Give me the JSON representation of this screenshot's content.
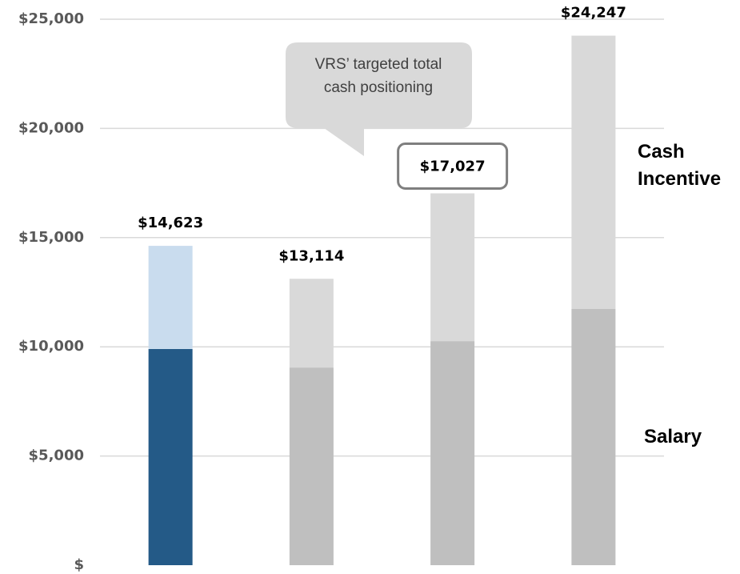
{
  "chart_data": {
    "type": "stacked_bar",
    "categories": [
      null,
      null,
      null,
      null
    ],
    "series": [
      {
        "name": "Salary",
        "color": "#bfbfbf",
        "colors": [
          "#245a87",
          "#bfbfbf",
          "#bfbfbf",
          "#bfbfbf"
        ],
        "values": [
          9900,
          9050,
          10260,
          11730
        ]
      },
      {
        "name": "Cash Incentive",
        "color": "#d9d9d9",
        "colors": [
          "#c9dcee",
          "#d9d9d9",
          "#d9d9d9",
          "#d9d9d9"
        ],
        "values": [
          4723,
          4064,
          6767,
          12517
        ]
      }
    ],
    "totals": [
      14623,
      13114,
      17027,
      24247
    ],
    "total_labels": [
      "$14,623",
      "$13,114",
      "$17,027",
      "$24,247"
    ],
    "annotation": "VRS’ targeted total cash positioning",
    "ylim": [
      0,
      25000
    ],
    "yticks": [
      {
        "value": 0,
        "label": "$"
      },
      {
        "value": 5000,
        "label": "$5,000"
      },
      {
        "value": 10000,
        "label": "$10,000"
      },
      {
        "value": 15000,
        "label": "$15,000"
      },
      {
        "value": 20000,
        "label": "$20,000"
      },
      {
        "value": 25000,
        "label": "$25,000"
      }
    ],
    "grid": true
  }
}
